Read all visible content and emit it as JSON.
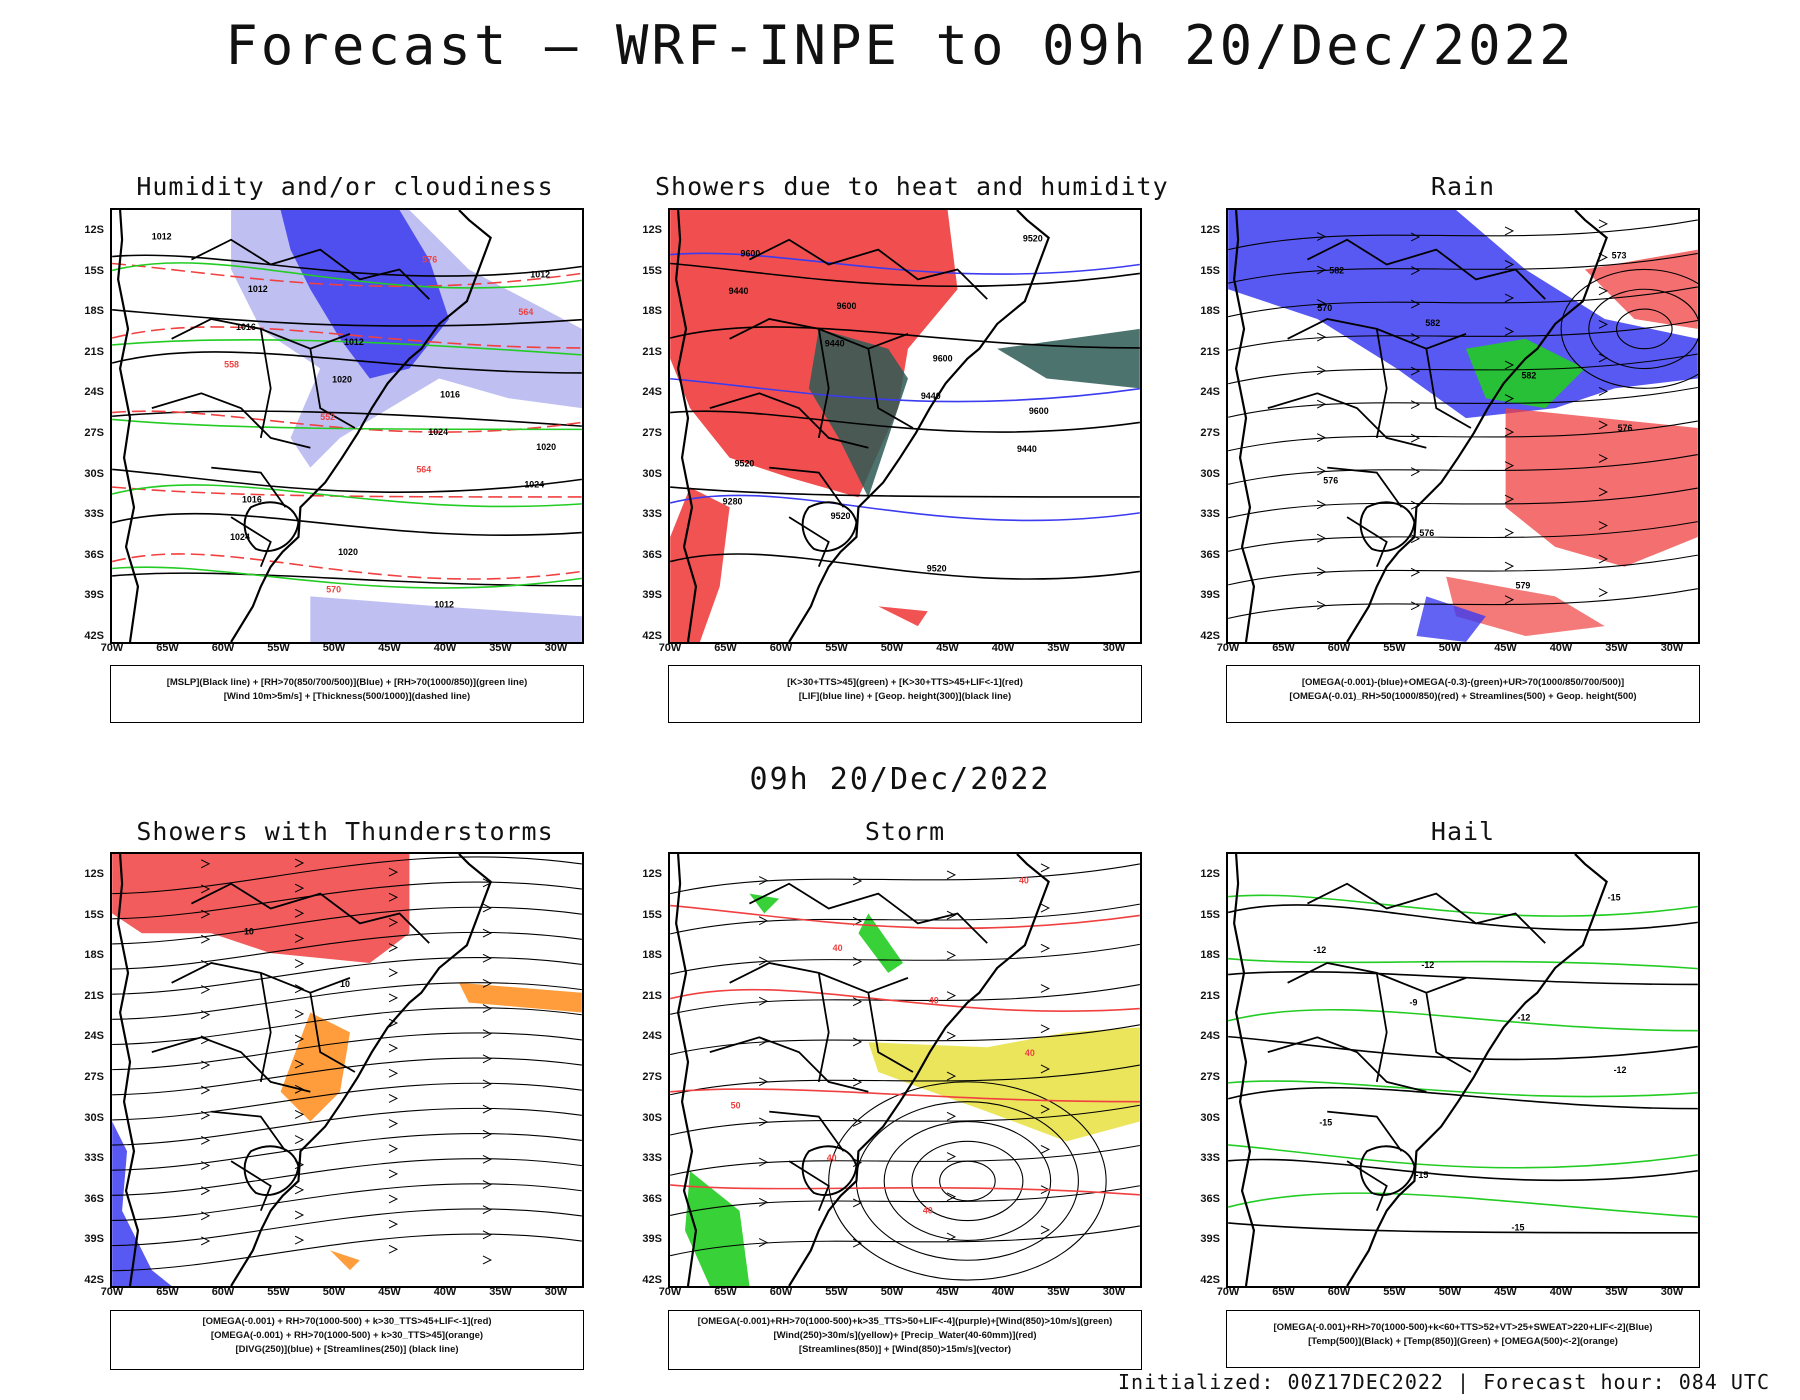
{
  "title": "Forecast — WRF-INPE to 09h 20/Dec/2022",
  "subtitle": "09h 20/Dec/2022",
  "footer": "Initialized: 00Z17DEC2022 | Forecast hour: 084 UTC",
  "axes": {
    "lat_labels": [
      "12S",
      "15S",
      "18S",
      "21S",
      "24S",
      "27S",
      "30S",
      "33S",
      "36S",
      "39S",
      "42S"
    ],
    "lon_labels": [
      "70W",
      "65W",
      "60W",
      "55W",
      "50W",
      "45W",
      "40W",
      "35W",
      "30W"
    ]
  },
  "colors": {
    "blue": "#3b3bf0",
    "lavender": "#b8b8f0",
    "green": "#22cc22",
    "red": "#f04040",
    "orange": "#ff8c1a",
    "darkteal": "#2e5a56",
    "yellow": "#e8e040",
    "black": "#000000"
  },
  "panels": [
    {
      "title": "Humidity and/or cloudiness",
      "contour_labels": [
        "1012",
        "1012",
        "1012",
        "1016",
        "1020",
        "1016",
        "1020",
        "1012",
        "1012",
        "1016",
        "1020",
        "1024",
        "1024",
        "1024",
        "570",
        "576",
        "564",
        "558",
        "552",
        "564"
      ],
      "legend": [
        "[MSLP](Black line) + [RH>70(850/700/500)](Blue) + [RH>70(1000/850)](green line)",
        "[Wind 10m>5m/s] + [Thickness(500/1000)](dashed line)"
      ]
    },
    {
      "title": "Showers due to heat and humidity",
      "contour_labels": [
        "9600",
        "9600",
        "9600",
        "9600",
        "9520",
        "9520",
        "9520",
        "9520",
        "9440",
        "9440",
        "9440",
        "9440",
        "9280"
      ],
      "legend": [
        "[K>30+TTS>45](green) + [K>30+TTS>45+LIF<-1](red)",
        "[LIF](blue line) + [Geop. height(300)](black line)"
      ]
    },
    {
      "title": "Rain",
      "contour_labels": [
        "582",
        "582",
        "582",
        "576",
        "576",
        "576",
        "579",
        "573",
        "570"
      ],
      "legend": [
        "[OMEGA(-0.001)-(blue)+OMEGA(-0.3)-(green)+UR>70(1000/850/700/500)]",
        "[OMEGA(-0.01)_RH>50(1000/850)(red) + Streamlines(500) + Geop. height(500)"
      ]
    },
    {
      "title": "Showers with Thunderstorms",
      "contour_labels": [
        "10",
        "10"
      ],
      "legend": [
        "[OMEGA(-0.001) + RH>70(1000-500) + k>30_TTS>45+LIF<-1](red)",
        "[OMEGA(-0.001) + RH>70(1000-500) + k>30_TTS>45](orange)",
        "[DIVG(250)](blue) + [Streamlines(250)] (black line)"
      ]
    },
    {
      "title": "Storm",
      "contour_labels": [
        "40",
        "40",
        "40",
        "50",
        "40",
        "40",
        "40"
      ],
      "legend": [
        "[OMEGA(-0.001)+RH>70(1000-500)+k>35_TTS>50+LIF<-4](purple)+[Wind(850)>10m/s](green)",
        "[Wind(250)>30m/s](yellow)+ [Precip_Water(40-60mm)](red)",
        "[Streamlines(850)] + [Wind(850)>15m/s](vector)"
      ]
    },
    {
      "title": "Hail",
      "contour_labels": [
        "-12",
        "-12",
        "-12",
        "-15",
        "-15",
        "-15",
        "-15",
        "-12",
        "-9"
      ],
      "legend": [
        "[OMEGA(-0.001)+RH>70(1000-500)+k<60+TTS>52+VT>25+SWEAT>220+LIF<-2](Blue)",
        "[Temp(500)](Black) + [Temp(850)](Green) + [OMEGA(500)<-2](orange)"
      ]
    }
  ]
}
